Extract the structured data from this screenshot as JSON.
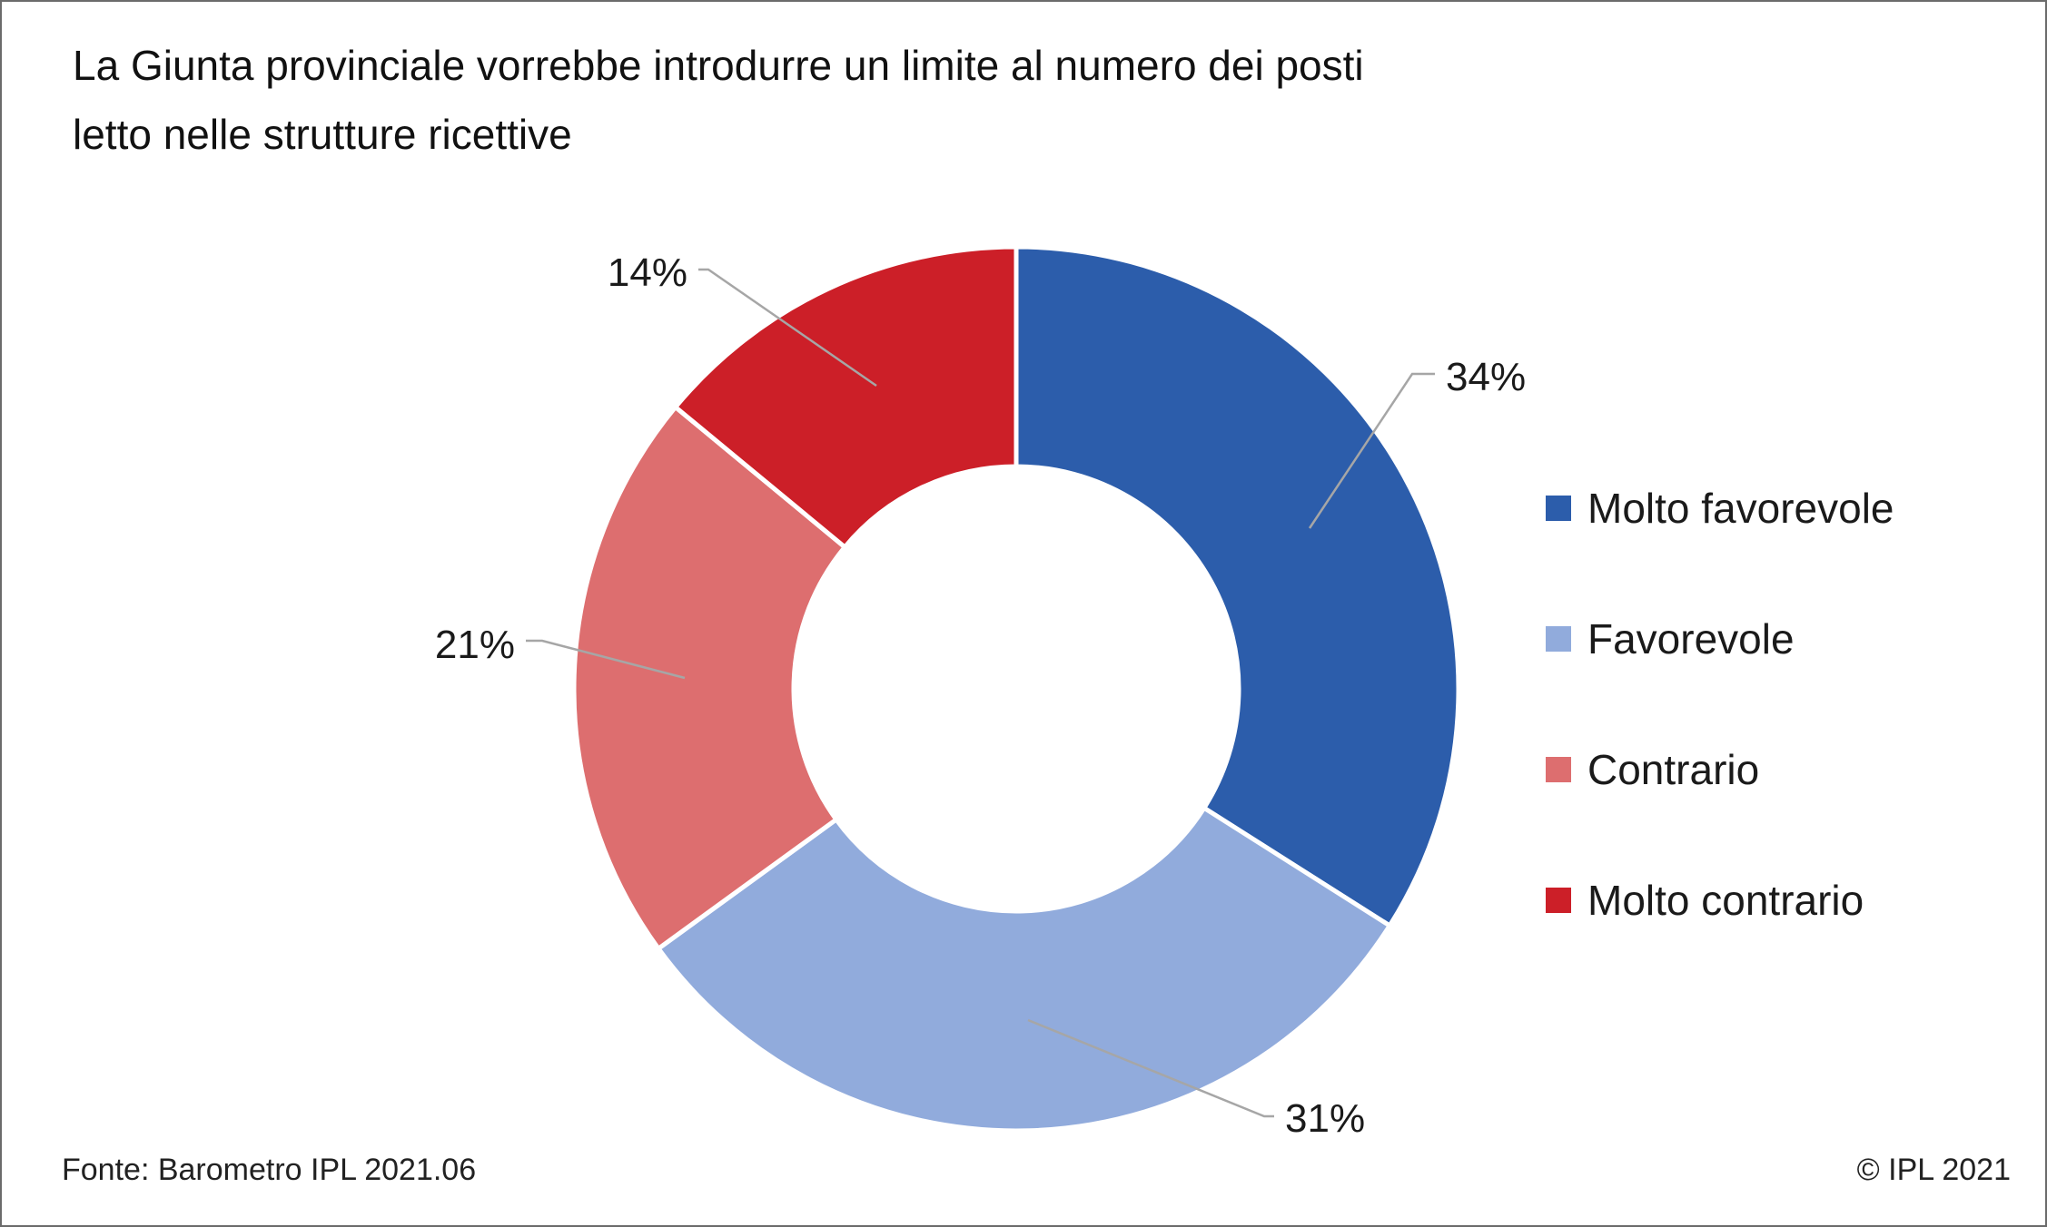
{
  "title_lines": [
    "La Giunta provinciale vorrebbe introdurre un limite al numero dei posti",
    "letto nelle strutture ricettive"
  ],
  "source": "Fonte: Barometro IPL 2021.06",
  "copyright": "© IPL 2021",
  "chart_data": {
    "type": "pie",
    "variant": "donut",
    "categories": [
      "Molto favorevole",
      "Favorevole",
      "Contrario",
      "Molto contrario"
    ],
    "values": [
      34,
      31,
      21,
      14
    ],
    "labels": [
      "34%",
      "31%",
      "21%",
      "14%"
    ],
    "colors": [
      "#2c5dab",
      "#91abdc",
      "#dd6e6f",
      "#cc1f28"
    ],
    "legend_position": "right"
  }
}
